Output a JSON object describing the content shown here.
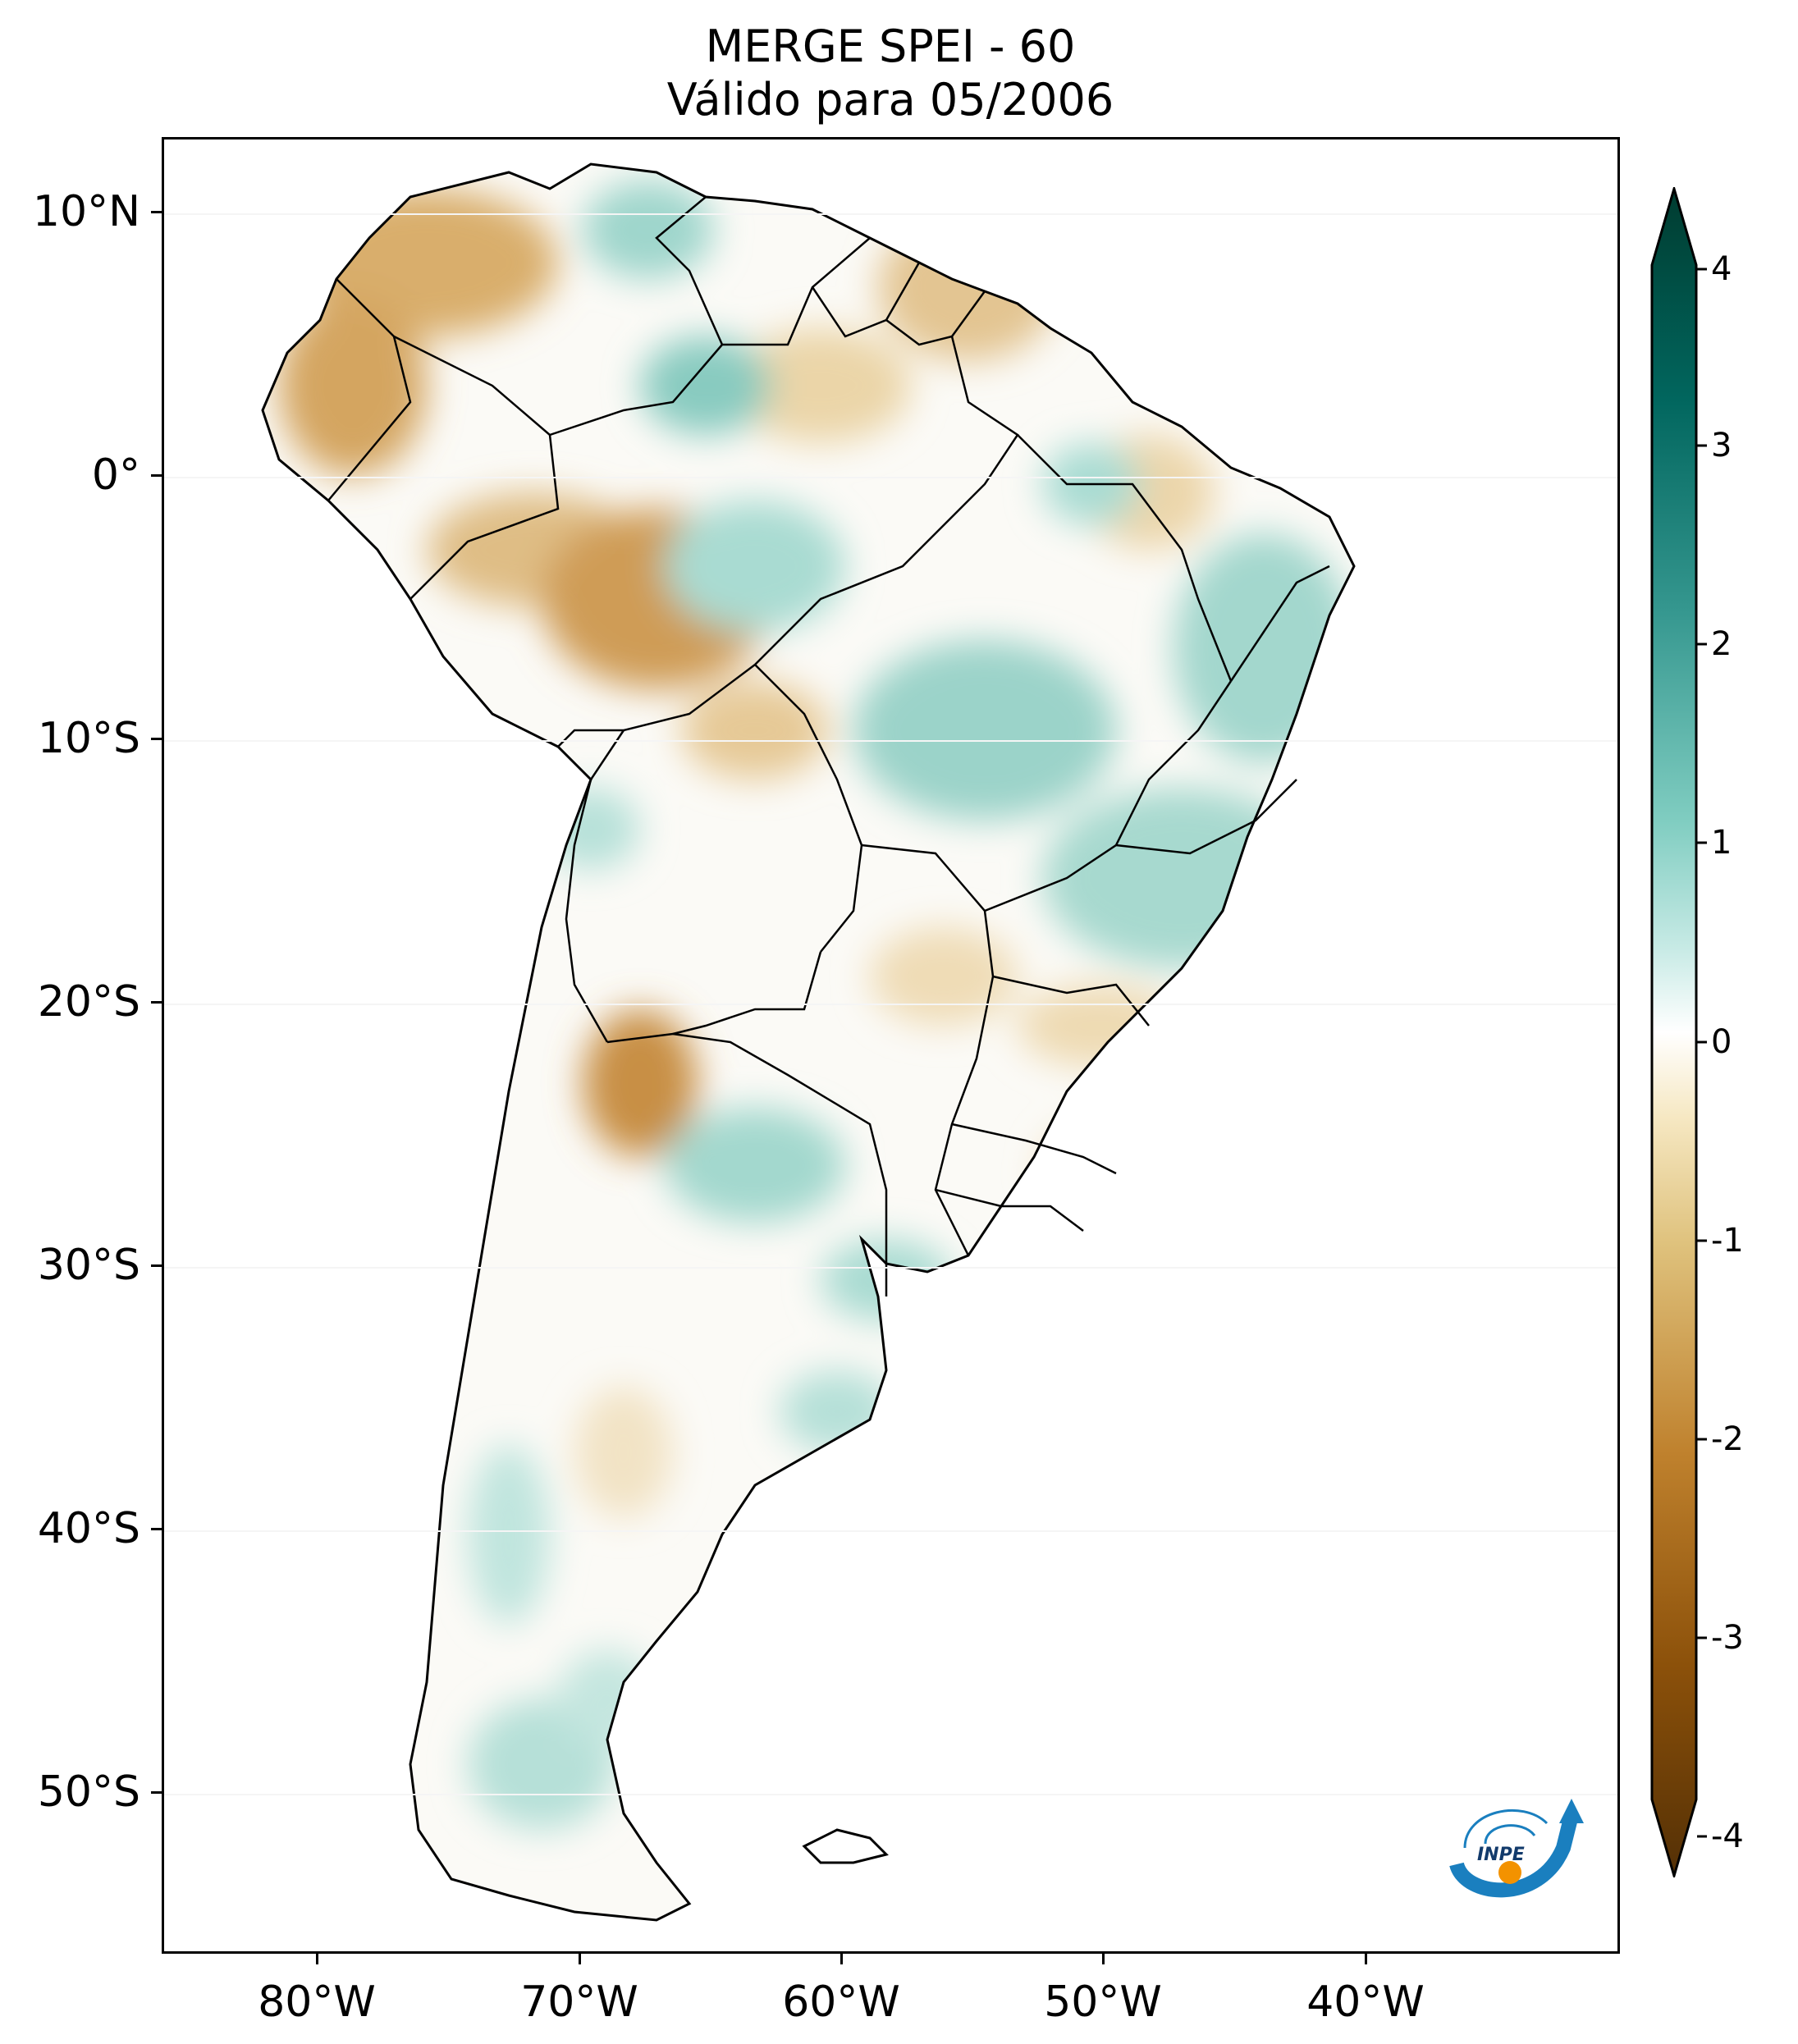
{
  "title": {
    "line1": "MERGE   SPEI - 60",
    "line2": "Válido para 05/2006"
  },
  "map": {
    "variable": "SPEI - 60",
    "source": "MERGE",
    "valid_date": "05/2006",
    "lat_labels": [
      "10°N",
      "0°",
      "10°S",
      "20°S",
      "30°S",
      "40°S",
      "50°S"
    ],
    "lon_labels": [
      "80°W",
      "70°W",
      "60°W",
      "50°W",
      "40°W"
    ],
    "colors": {
      "dry_extreme": "#543005",
      "dry": "#bf812d",
      "dry_light": "#f6e8c3",
      "neutral": "#ffffff",
      "wet_light": "#c7eae5",
      "wet": "#35978f",
      "wet_extreme": "#003c30"
    }
  },
  "colorbar": {
    "ticks": [
      "4",
      "3",
      "2",
      "1",
      "0",
      "-1",
      "-2",
      "-3",
      "-4"
    ],
    "min": -4,
    "max": 4
  },
  "logo": {
    "text": "INPE",
    "icon": "inpe-logo-icon"
  }
}
